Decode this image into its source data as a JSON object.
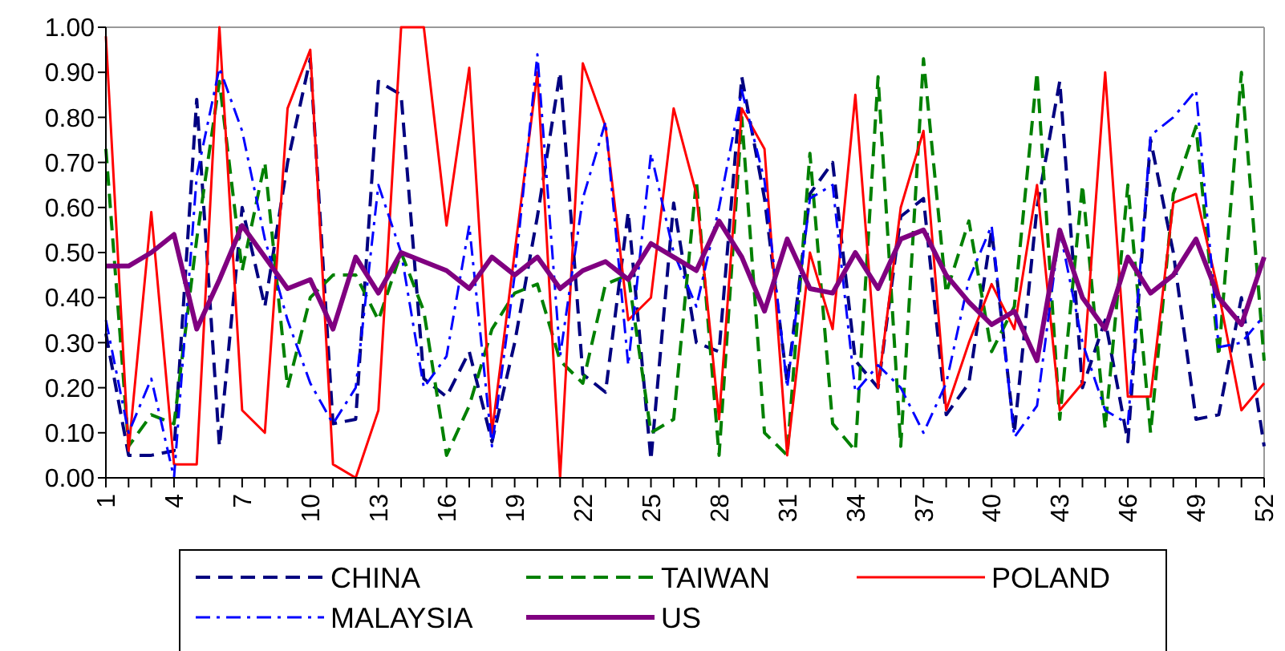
{
  "chart_data": {
    "type": "line",
    "categories": [
      "1",
      null,
      null,
      "4",
      null,
      null,
      "7",
      null,
      null,
      "10",
      null,
      null,
      "13",
      null,
      null,
      "16",
      null,
      null,
      "19",
      null,
      null,
      "22",
      null,
      null,
      "25",
      null,
      null,
      "28",
      null,
      null,
      "31",
      null,
      null,
      "34",
      null,
      null,
      "37",
      null,
      null,
      "40",
      null,
      null,
      "43",
      null,
      null,
      "46",
      null,
      null,
      "49",
      null,
      null,
      "52"
    ],
    "ylim": [
      0,
      1
    ],
    "yticks": [
      {
        "value": 0,
        "label": "0.00"
      },
      {
        "value": 0.1,
        "label": "0.10"
      },
      {
        "value": 0.2,
        "label": "0.20"
      },
      {
        "value": 0.3,
        "label": "0.30"
      },
      {
        "value": 0.4,
        "label": "0.40"
      },
      {
        "value": 0.5,
        "label": "0.50"
      },
      {
        "value": 0.6,
        "label": "0.60"
      },
      {
        "value": 0.7,
        "label": "0.70"
      },
      {
        "value": 0.8,
        "label": "0.80"
      },
      {
        "value": 0.9,
        "label": "0.90"
      },
      {
        "value": 1,
        "label": "1.00"
      }
    ],
    "grid": false,
    "legend": "bottom",
    "marker": "none",
    "series": [
      {
        "name": "CHINA",
        "color": "#000080",
        "line_style": "dashed",
        "values": [
          0.32,
          0.05,
          0.05,
          0.06,
          0.84,
          0.07,
          0.6,
          0.38,
          0.7,
          0.93,
          0.12,
          0.13,
          0.88,
          0.85,
          0.22,
          0.18,
          0.28,
          0.08,
          0.3,
          0.58,
          0.9,
          0.23,
          0.19,
          0.59,
          0.04,
          0.61,
          0.3,
          0.28,
          0.89,
          0.62,
          0.21,
          0.63,
          0.7,
          0.26,
          0.2,
          0.58,
          0.62,
          0.14,
          0.21,
          0.55,
          0.1,
          0.6,
          0.88,
          0.2,
          0.35,
          0.08,
          0.75,
          0.5,
          0.13,
          0.14,
          0.4,
          0.07
        ]
      },
      {
        "name": "TAIWAN",
        "color": "#008000",
        "line_style": "dashed",
        "values": [
          0.73,
          0.07,
          0.14,
          0.12,
          0.53,
          0.88,
          0.46,
          0.7,
          0.2,
          0.4,
          0.45,
          0.45,
          0.35,
          0.5,
          0.37,
          0.05,
          0.16,
          0.33,
          0.41,
          0.43,
          0.26,
          0.21,
          0.43,
          0.45,
          0.1,
          0.13,
          0.66,
          0.05,
          0.8,
          0.1,
          0.05,
          0.72,
          0.12,
          0.06,
          0.89,
          0.07,
          0.93,
          0.41,
          0.57,
          0.28,
          0.38,
          0.9,
          0.13,
          0.65,
          0.11,
          0.65,
          0.1,
          0.63,
          0.78,
          0.27,
          0.9,
          0.26
        ]
      },
      {
        "name": "POLAND",
        "color": "#ff0000",
        "line_style": "solid",
        "values": [
          0.98,
          0.06,
          0.59,
          0.03,
          0.03,
          1,
          0.15,
          0.1,
          0.82,
          0.95,
          0.03,
          0,
          0.15,
          1,
          1,
          0.56,
          0.91,
          0.1,
          0.5,
          0.9,
          0,
          0.92,
          0.78,
          0.35,
          0.4,
          0.82,
          0.63,
          0.13,
          0.82,
          0.73,
          0.05,
          0.5,
          0.33,
          0.85,
          0.2,
          0.6,
          0.77,
          0.15,
          0.3,
          0.43,
          0.33,
          0.65,
          0.15,
          0.21,
          0.9,
          0.18,
          0.18,
          0.61,
          0.63,
          0.41,
          0.15,
          0.21
        ]
      },
      {
        "name": "MALAYSIA",
        "color": "#0000ff",
        "line_style": "dashdot",
        "values": [
          0.35,
          0.1,
          0.22,
          0,
          0.67,
          0.91,
          0.77,
          0.53,
          0.35,
          0.21,
          0.12,
          0.2,
          0.65,
          0.5,
          0.2,
          0.27,
          0.56,
          0.07,
          0.45,
          0.94,
          0.27,
          0.62,
          0.79,
          0.25,
          0.72,
          0.5,
          0.38,
          0.6,
          0.86,
          0.66,
          0.2,
          0.62,
          0.65,
          0.19,
          0.25,
          0.2,
          0.1,
          0.21,
          0.44,
          0.56,
          0.09,
          0.16,
          0.55,
          0.3,
          0.15,
          0.12,
          0.76,
          0.8,
          0.86,
          0.29,
          0.3,
          0.36
        ]
      },
      {
        "name": "US",
        "color": "#800080",
        "line_style": "solid",
        "values": [
          0.47,
          0.47,
          0.5,
          0.54,
          0.33,
          0.44,
          0.56,
          0.49,
          0.42,
          0.44,
          0.33,
          0.49,
          0.41,
          0.5,
          0.48,
          0.46,
          0.42,
          0.49,
          0.45,
          0.49,
          0.42,
          0.46,
          0.48,
          0.44,
          0.52,
          0.49,
          0.46,
          0.57,
          0.49,
          0.37,
          0.53,
          0.42,
          0.41,
          0.5,
          0.42,
          0.53,
          0.55,
          0.45,
          0.39,
          0.34,
          0.37,
          0.26,
          0.55,
          0.4,
          0.33,
          0.49,
          0.41,
          0.45,
          0.53,
          0.4,
          0.34,
          0.49
        ]
      }
    ]
  }
}
